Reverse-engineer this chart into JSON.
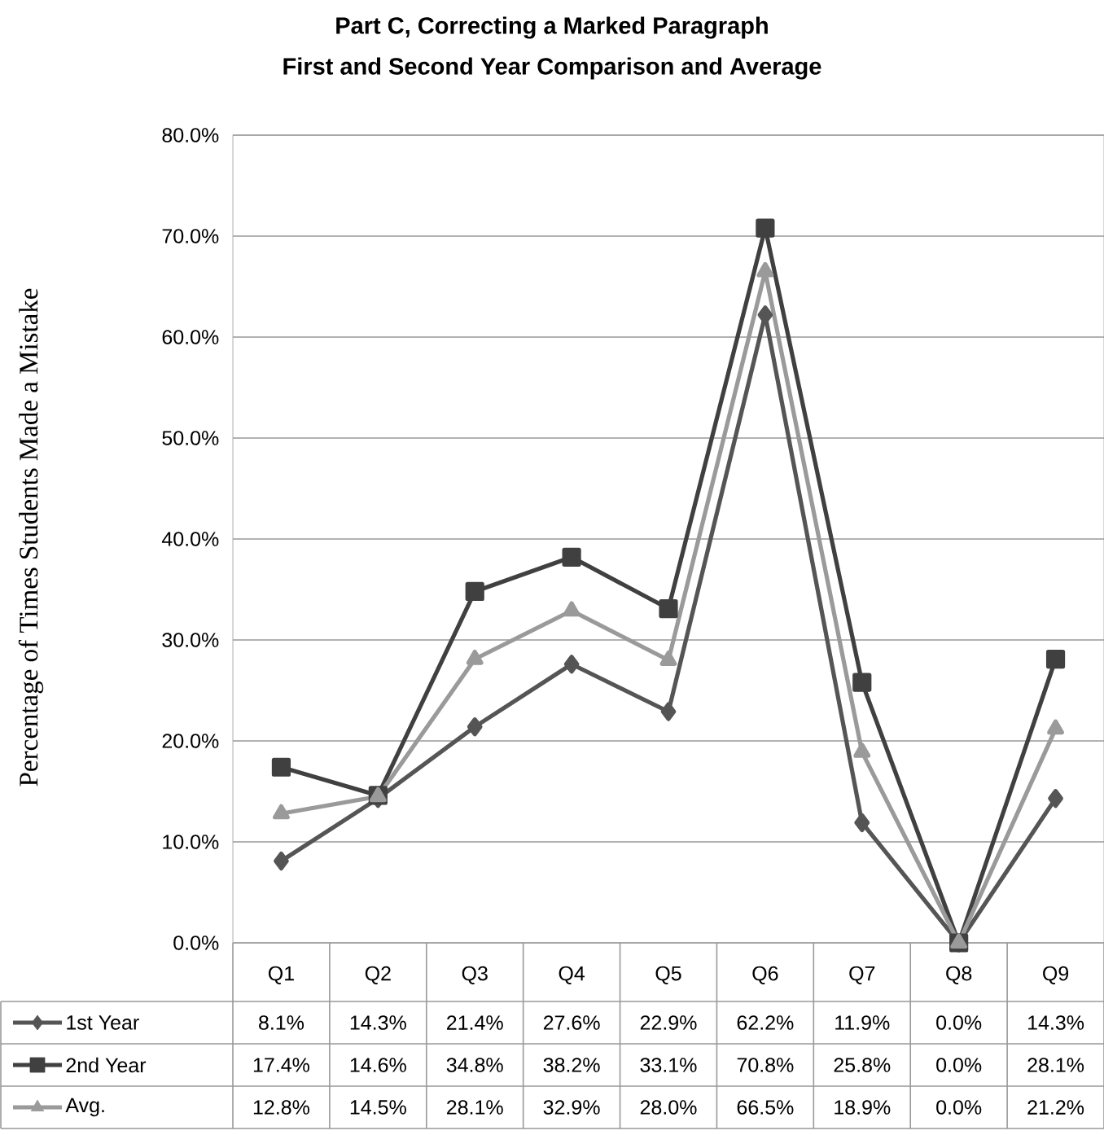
{
  "chart_data": {
    "type": "line",
    "title": "Part C, Correcting a Marked Paragraph",
    "subtitle": "First and Second Year Comparison and Average",
    "ylabel": "Percentage of Times Students Made a Mistake",
    "categories": [
      "Q1",
      "Q2",
      "Q3",
      "Q4",
      "Q5",
      "Q6",
      "Q7",
      "Q8",
      "Q9"
    ],
    "ylim": [
      0,
      80
    ],
    "yticks": [
      {
        "value": 0,
        "label": "0.0%"
      },
      {
        "value": 10,
        "label": "10.0%"
      },
      {
        "value": 20,
        "label": "20.0%"
      },
      {
        "value": 30,
        "label": "30.0%"
      },
      {
        "value": 40,
        "label": "40.0%"
      },
      {
        "value": 50,
        "label": "50.0%"
      },
      {
        "value": 60,
        "label": "60.0%"
      },
      {
        "value": 70,
        "label": "70.0%"
      },
      {
        "value": 80,
        "label": "80.0%"
      }
    ],
    "grid": "y",
    "legend": "bottom left",
    "line_style": "solid",
    "series": [
      {
        "name": "1st Year",
        "color": "#555555",
        "marker": "diamond",
        "values": [
          8.1,
          14.3,
          21.4,
          27.6,
          22.9,
          62.2,
          11.9,
          0.0,
          14.3
        ],
        "value_labels": [
          "8.1%",
          "14.3%",
          "21.4%",
          "27.6%",
          "22.9%",
          "62.2%",
          "11.9%",
          "0.0%",
          "14.3%"
        ]
      },
      {
        "name": "2nd Year",
        "color": "#404040",
        "marker": "square",
        "values": [
          17.4,
          14.6,
          34.8,
          38.2,
          33.1,
          70.8,
          25.8,
          0.0,
          28.1
        ],
        "value_labels": [
          "17.4%",
          "14.6%",
          "34.8%",
          "38.2%",
          "33.1%",
          "70.8%",
          "25.8%",
          "0.0%",
          "28.1%"
        ]
      },
      {
        "name": "Avg.",
        "color": "#9a9a9a",
        "marker": "triangle",
        "values": [
          12.8,
          14.5,
          28.1,
          32.9,
          28.0,
          66.5,
          18.9,
          0.0,
          21.2
        ],
        "value_labels": [
          "12.8%",
          "14.5%",
          "28.1%",
          "32.9%",
          "28.0%",
          "66.5%",
          "18.9%",
          "0.0%",
          "21.2%"
        ]
      }
    ]
  }
}
